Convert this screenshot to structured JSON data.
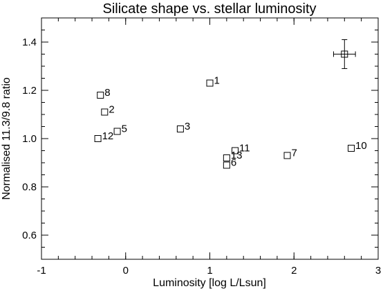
{
  "chart_data": {
    "type": "scatter",
    "title": "Silicate shape vs. stellar luminosity",
    "xlabel": "Luminosity  [log L/Lsun]",
    "ylabel": "Normalised 11.3/9.8 ratio",
    "xlim": [
      -1,
      3
    ],
    "ylim": [
      0.5,
      1.5
    ],
    "xticks": [
      -1,
      0,
      1,
      2,
      3
    ],
    "xtick_labels": [
      "-1",
      "0",
      "1",
      "2",
      "3"
    ],
    "yticks": [
      0.6,
      0.8,
      1.0,
      1.2,
      1.4
    ],
    "ytick_labels": [
      "0.6",
      "0.8",
      "1.0",
      "1.2",
      "1.4"
    ],
    "grid": false,
    "marker": "open-square",
    "points": [
      {
        "label": "1",
        "x": 1.0,
        "y": 1.23
      },
      {
        "label": "2",
        "x": -0.25,
        "y": 1.11
      },
      {
        "label": "3",
        "x": 0.65,
        "y": 1.04
      },
      {
        "label": "5",
        "x": -0.1,
        "y": 1.03
      },
      {
        "label": "6",
        "x": 1.2,
        "y": 0.89
      },
      {
        "label": "7",
        "x": 1.92,
        "y": 0.93
      },
      {
        "label": "8",
        "x": -0.3,
        "y": 1.18
      },
      {
        "label": "10",
        "x": 2.68,
        "y": 0.96
      },
      {
        "label": "11",
        "x": 1.3,
        "y": 0.95
      },
      {
        "label": "12",
        "x": -0.33,
        "y": 1.0
      },
      {
        "label": "13",
        "x": 1.2,
        "y": 0.92
      }
    ],
    "typical_error": {
      "x": 2.6,
      "y": 1.35,
      "xerr": 0.13,
      "yerr": 0.06
    }
  }
}
